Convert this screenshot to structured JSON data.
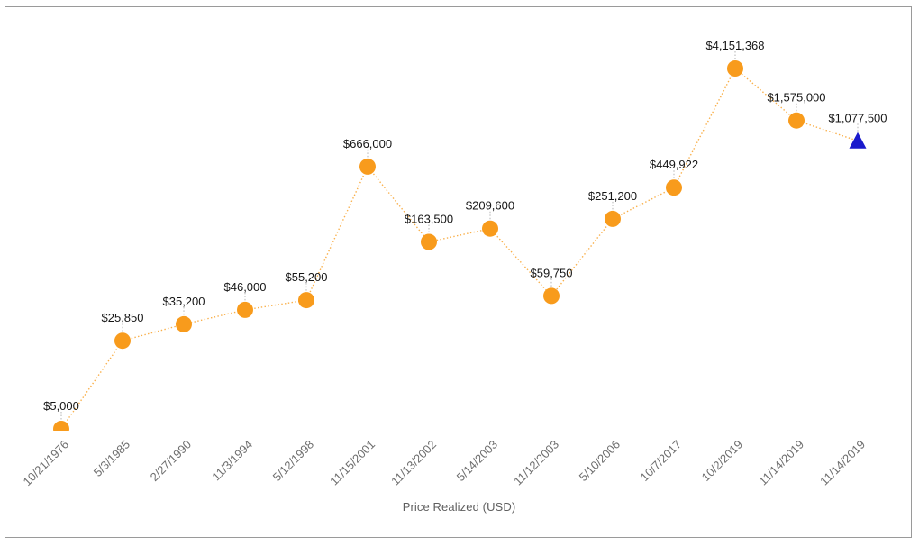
{
  "window": {
    "background_color": "#ffffff",
    "frame_border_color": "#9a9a9a"
  },
  "chart_data": {
    "type": "line",
    "title": "",
    "xlabel": "Price Realized (USD)",
    "ylabel": "",
    "y_scale": "log",
    "grid": false,
    "legend": "none",
    "x_tick_rotation": -45,
    "line_style": "dotted",
    "categories": [
      "10/21/1976",
      "5/3/1985",
      "2/27/1990",
      "11/3/1994",
      "5/12/1998",
      "11/15/2001",
      "11/13/2002",
      "5/14/2003",
      "11/12/2003",
      "5/10/2006",
      "10/7/2017",
      "10/2/2019",
      "11/14/2019",
      "11/14/2019"
    ],
    "points": [
      {
        "date": "10/21/1976",
        "value": 5000,
        "label": "$5,000",
        "marker": "circle"
      },
      {
        "date": "5/3/1985",
        "value": 25850,
        "label": "$25,850",
        "marker": "circle"
      },
      {
        "date": "2/27/1990",
        "value": 35200,
        "label": "$35,200",
        "marker": "circle"
      },
      {
        "date": "11/3/1994",
        "value": 46000,
        "label": "$46,000",
        "marker": "circle"
      },
      {
        "date": "5/12/1998",
        "value": 55200,
        "label": "$55,200",
        "marker": "circle"
      },
      {
        "date": "11/15/2001",
        "value": 666000,
        "label": "$666,000",
        "marker": "circle"
      },
      {
        "date": "11/13/2002",
        "value": 163500,
        "label": "$163,500",
        "marker": "circle"
      },
      {
        "date": "5/14/2003",
        "value": 209600,
        "label": "$209,600",
        "marker": "circle"
      },
      {
        "date": "11/12/2003",
        "value": 59750,
        "label": "$59,750",
        "marker": "circle"
      },
      {
        "date": "5/10/2006",
        "value": 251200,
        "label": "$251,200",
        "marker": "circle"
      },
      {
        "date": "10/7/2017",
        "value": 449922,
        "label": "$449,922",
        "marker": "circle"
      },
      {
        "date": "10/2/2019",
        "value": 4151368,
        "label": "$4,151,368",
        "marker": "circle"
      },
      {
        "date": "11/14/2019",
        "value": 1575000,
        "label": "$1,575,000",
        "marker": "circle"
      },
      {
        "date": "11/14/2019",
        "value": 1077500,
        "label": "$1,077,500",
        "marker": "triangle"
      }
    ],
    "colors": {
      "series_orange": "#F89B1C",
      "triangle_blue": "#1A1ACC",
      "value_label": "#161616",
      "tick_label": "#6E6E6E",
      "axis_title": "#5F5F5F",
      "annotation_stem": "#ABABAB"
    }
  }
}
